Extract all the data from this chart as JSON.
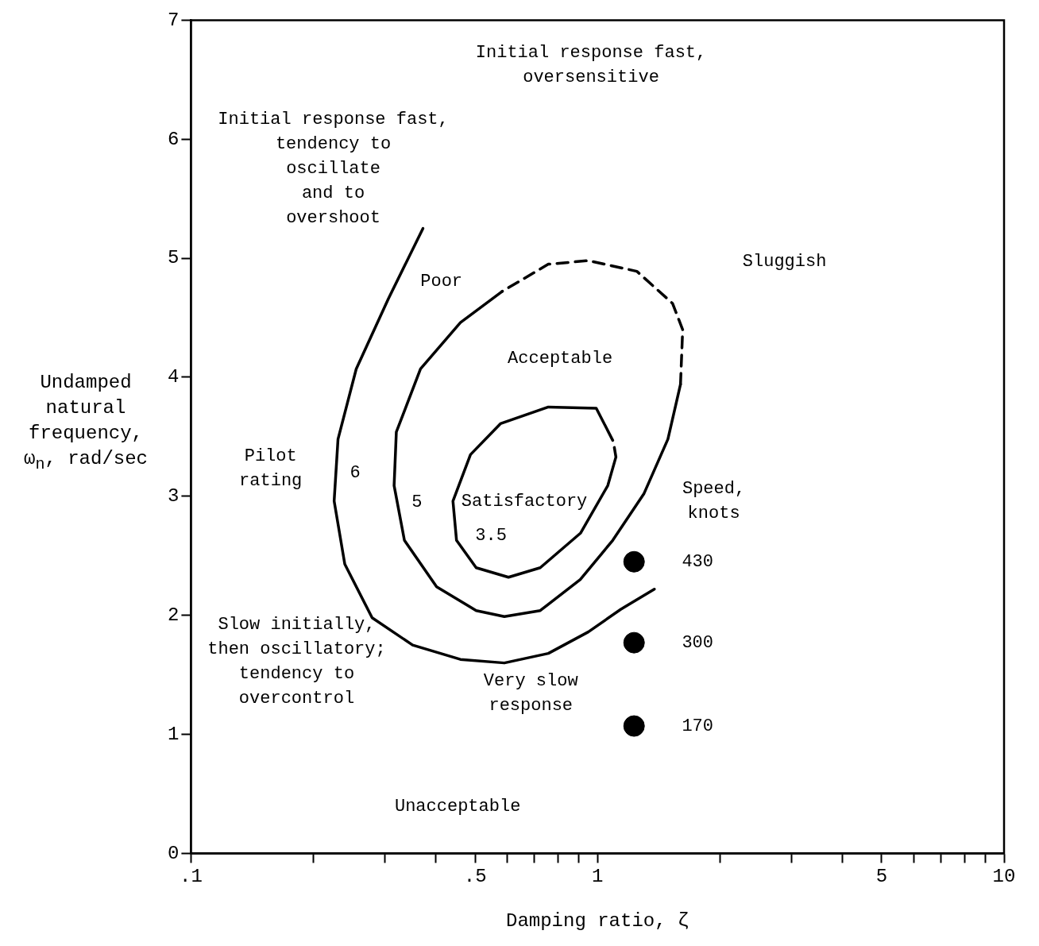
{
  "chart_data": {
    "type": "line",
    "xlabel": "Damping ratio, ζ",
    "ylabel": "Undamped\nnatural\nfrequency,\nω$_{n}$, rad/sec",
    "legend_title": "Speed,\nknots",
    "log": "x",
    "grid": false,
    "legend": false,
    "marker": "none",
    "line_style": "solid",
    "xlim": [
      0.1,
      10
    ],
    "ylim": [
      0,
      7
    ],
    "xticks": [
      {
        "value": 0.1,
        "label": ".1"
      },
      {
        "value": 0.2,
        "label": null
      },
      {
        "value": 0.3,
        "label": null
      },
      {
        "value": 0.4,
        "label": null
      },
      {
        "value": 0.5,
        "label": ".5"
      },
      {
        "value": 0.6,
        "label": null
      },
      {
        "value": 0.7,
        "label": null
      },
      {
        "value": 0.8,
        "label": null
      },
      {
        "value": 0.9,
        "label": null
      },
      1,
      {
        "value": 2,
        "label": null
      },
      {
        "value": 3,
        "label": null
      },
      {
        "value": 4,
        "label": null
      },
      5,
      {
        "value": 6,
        "label": null
      },
      {
        "value": 7,
        "label": null
      },
      {
        "value": 8,
        "label": null
      },
      {
        "value": 9,
        "label": null
      },
      10
    ],
    "yticks": [
      0,
      1,
      2,
      3,
      4,
      5,
      6,
      7
    ],
    "series": [
      {
        "color": "#000000",
        "x": [
          0.372,
          0.306,
          0.255,
          0.23,
          0.225,
          0.239,
          0.279,
          0.351,
          0.46,
          0.59,
          0.757,
          0.949,
          1.14,
          1.38
        ],
        "values": [
          5.25,
          4.66,
          4.07,
          3.48,
          2.96,
          2.43,
          1.98,
          1.75,
          1.63,
          1.6,
          1.68,
          1.86,
          2.05,
          2.22
        ]
      },
      {
        "color": "#000000",
        "x": [
          0.582,
          0.46,
          0.367,
          0.32,
          0.316,
          0.335,
          0.402,
          0.503,
          0.59,
          0.723,
          0.907,
          1.09,
          1.3,
          1.49,
          1.6
        ],
        "values": [
          4.72,
          4.46,
          4.07,
          3.54,
          3.09,
          2.63,
          2.24,
          2.04,
          1.99,
          2.04,
          2.3,
          2.63,
          3.02,
          3.48,
          3.94
        ]
      },
      {
        "color": "#000000",
        "line_style": "dashed",
        "x": [
          1.6,
          1.62,
          1.53,
          1.25,
          0.95,
          0.757,
          0.582
        ],
        "values": [
          3.94,
          4.4,
          4.62,
          4.89,
          4.98,
          4.95,
          4.72
        ]
      },
      {
        "color": "#000000",
        "x": [
          1.09,
          0.993,
          0.757,
          0.577,
          0.487,
          0.441,
          0.45,
          0.503,
          0.604,
          0.723,
          0.908,
          1.06,
          1.11,
          1.1
        ],
        "values": [
          3.47,
          3.74,
          3.75,
          3.61,
          3.35,
          2.96,
          2.63,
          2.4,
          2.32,
          2.4,
          2.69,
          3.09,
          3.33,
          3.41
        ]
      },
      {
        "type": "scatter",
        "name": "430",
        "color": "#000000",
        "marker": "circle",
        "x": [
          1.23
        ],
        "values": [
          2.45
        ]
      },
      {
        "type": "scatter",
        "name": "300",
        "color": "#000000",
        "marker": "circle",
        "x": [
          1.23
        ],
        "values": [
          1.77
        ]
      },
      {
        "type": "scatter",
        "name": "170",
        "color": "#000000",
        "marker": "circle",
        "x": [
          1.23
        ],
        "values": [
          1.07
        ]
      }
    ],
    "annotations": [
      "Initial response fast,\noversensitive",
      "Initial response fast,\ntendency to\noscillate\nand to\novershoot",
      "Sluggish",
      "Poor",
      "Acceptable",
      "Pilot\nrating",
      "6",
      "5",
      "Satisfactory",
      "3.5",
      "Slow initially,\nthen oscillatory;\ntendency to\novercontrol",
      "Very slow\nresponse",
      "Unacceptable"
    ]
  }
}
